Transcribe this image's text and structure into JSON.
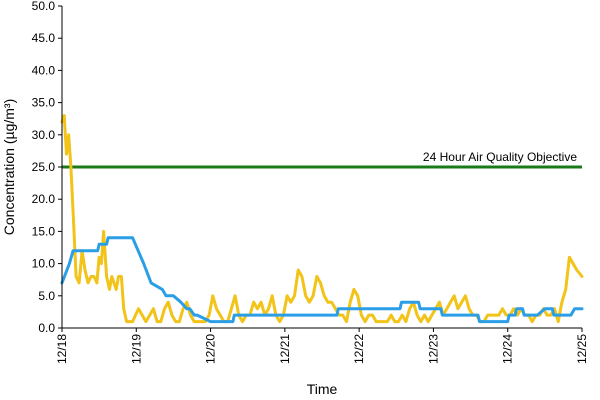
{
  "chart_data": {
    "type": "line",
    "title": "",
    "xlabel": "Time",
    "ylabel": "Concentration (µg/m³)",
    "ylim": [
      0,
      50
    ],
    "yticks": [
      "0.0",
      "5.0",
      "10.0",
      "15.0",
      "20.0",
      "25.0",
      "30.0",
      "35.0",
      "40.0",
      "45.0",
      "50.0"
    ],
    "xlim": [
      0,
      7
    ],
    "xticks": [
      "12/18",
      "12/19",
      "12/20",
      "12/21",
      "12/22",
      "12/23",
      "12/24",
      "12/25"
    ],
    "grid": false,
    "legend": "none",
    "reference_line": {
      "label": "24 Hour Air Quality Objective",
      "value": 25.0,
      "color": "#1a7a1a"
    },
    "series": [
      {
        "color": "#f2c318",
        "x": [
          0.0,
          0.03,
          0.06,
          0.09,
          0.12,
          0.15,
          0.19,
          0.23,
          0.27,
          0.31,
          0.35,
          0.39,
          0.43,
          0.47,
          0.5,
          0.53,
          0.56,
          0.6,
          0.64,
          0.67,
          0.7,
          0.73,
          0.76,
          0.8,
          0.83,
          0.87,
          0.91,
          0.95,
          0.99,
          1.03,
          1.08,
          1.13,
          1.18,
          1.23,
          1.28,
          1.33,
          1.38,
          1.43,
          1.48,
          1.53,
          1.58,
          1.63,
          1.68,
          1.73,
          1.78,
          1.83,
          1.88,
          1.93,
          1.98,
          2.03,
          2.08,
          2.13,
          2.18,
          2.23,
          2.28,
          2.33,
          2.38,
          2.43,
          2.48,
          2.53,
          2.58,
          2.63,
          2.68,
          2.73,
          2.78,
          2.83,
          2.88,
          2.93,
          2.98,
          3.03,
          3.08,
          3.13,
          3.18,
          3.23,
          3.28,
          3.33,
          3.38,
          3.43,
          3.48,
          3.53,
          3.58,
          3.63,
          3.68,
          3.73,
          3.78,
          3.83,
          3.88,
          3.93,
          3.98,
          4.03,
          4.08,
          4.13,
          4.18,
          4.23,
          4.28,
          4.33,
          4.38,
          4.43,
          4.48,
          4.53,
          4.58,
          4.63,
          4.68,
          4.73,
          4.78,
          4.83,
          4.88,
          4.93,
          4.98,
          5.03,
          5.08,
          5.13,
          5.18,
          5.23,
          5.28,
          5.33,
          5.38,
          5.43,
          5.48,
          5.53,
          5.58,
          5.63,
          5.68,
          5.73,
          5.78,
          5.83,
          5.88,
          5.93,
          5.98,
          6.03,
          6.08,
          6.13,
          6.18,
          6.23,
          6.28,
          6.33,
          6.38,
          6.43,
          6.48,
          6.53,
          6.58,
          6.63,
          6.68,
          6.73,
          6.78,
          6.83,
          6.88,
          6.93,
          7.0
        ],
        "values": [
          32,
          33,
          27,
          30,
          25,
          18,
          8,
          7,
          12,
          9,
          7,
          8,
          8,
          7,
          11,
          10,
          15,
          8,
          6,
          8,
          7,
          6,
          8,
          8,
          3,
          1,
          1,
          1,
          2,
          3,
          2,
          1,
          2,
          3,
          1,
          1,
          3,
          4,
          2,
          1,
          1,
          3,
          4,
          2,
          1,
          1,
          1,
          1,
          2,
          5,
          3,
          2,
          1,
          1,
          3,
          5,
          2,
          1,
          2,
          2,
          4,
          3,
          4,
          2,
          3,
          5,
          2,
          1,
          2,
          5,
          4,
          5,
          9,
          8,
          5,
          4,
          5,
          8,
          7,
          5,
          4,
          4,
          3,
          2,
          2,
          1,
          4,
          6,
          5,
          2,
          1,
          2,
          2,
          1,
          1,
          1,
          1,
          2,
          1,
          1,
          2,
          1,
          3,
          4,
          2,
          1,
          2,
          1,
          2,
          3,
          4,
          2,
          3,
          4,
          5,
          3,
          4,
          5,
          3,
          2,
          2,
          1,
          1,
          2,
          2,
          2,
          2,
          3,
          2,
          2,
          3,
          2,
          3,
          2,
          2,
          1,
          2,
          2,
          3,
          2,
          2,
          3,
          1,
          4,
          6,
          11,
          10,
          9,
          8
        ]
      },
      {
        "color": "#2a9ee6",
        "x": [
          0.0,
          0.1,
          0.15,
          0.48,
          0.5,
          0.6,
          0.62,
          0.7,
          0.72,
          0.95,
          1.1,
          1.2,
          1.35,
          1.4,
          1.5,
          1.6,
          1.68,
          1.72,
          1.78,
          1.82,
          2.0,
          2.3,
          2.32,
          2.5,
          2.52,
          3.48,
          3.5,
          3.7,
          3.72,
          4.55,
          4.57,
          4.8,
          4.82,
          5.1,
          5.12,
          5.3,
          5.32,
          5.6,
          5.62,
          6.0,
          6.02,
          6.1,
          6.12,
          6.2,
          6.22,
          6.4,
          6.5,
          6.6,
          6.62,
          6.85,
          6.9,
          7.0
        ],
        "values": [
          7,
          10,
          12,
          12,
          13,
          13,
          14,
          14,
          14,
          14,
          10,
          7,
          6,
          5,
          5,
          4,
          3,
          3,
          2,
          2,
          1,
          1,
          2,
          2,
          2,
          2,
          2,
          2,
          3,
          3,
          4,
          4,
          3,
          3,
          2,
          2,
          2,
          2,
          1,
          1,
          2,
          2,
          3,
          3,
          2,
          2,
          3,
          3,
          2,
          2,
          3,
          3
        ]
      }
    ]
  }
}
